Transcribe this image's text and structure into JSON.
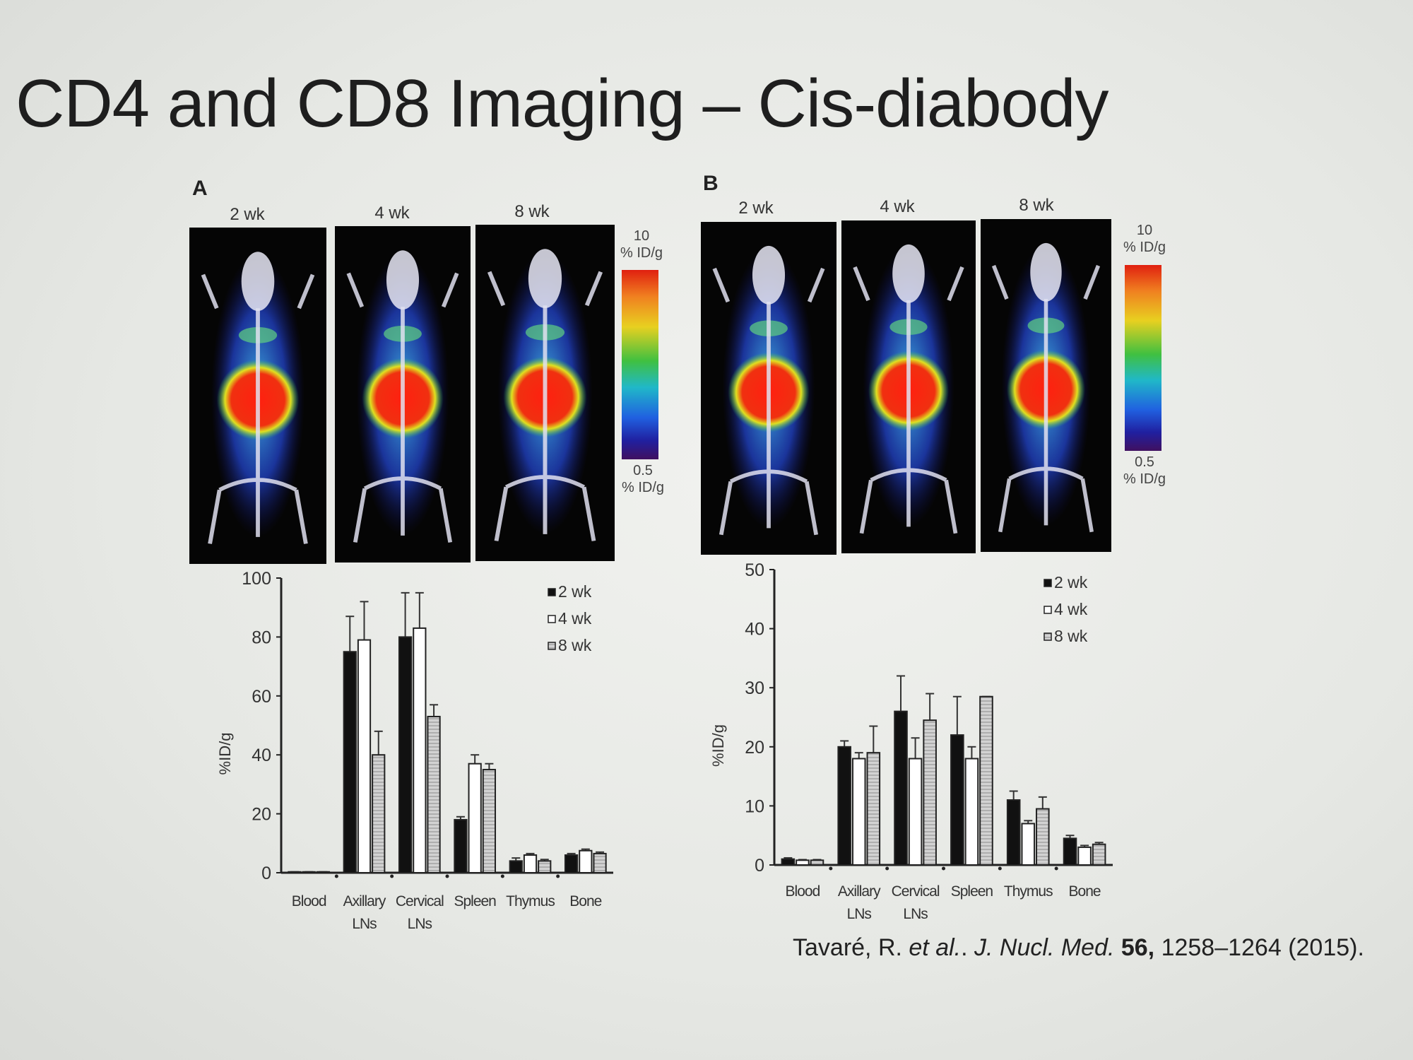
{
  "slide": {
    "title": "CD4 and CD8 Imaging – Cis-diabody",
    "citation": {
      "authors": "Tavaré, R. ",
      "etal": "et al.",
      "sep": ". ",
      "journal": "J. Nucl. Med.",
      "volume": " 56,",
      "pages": " 1258–1264 (2015)."
    }
  },
  "panels": [
    {
      "label": "A",
      "timepoints": [
        "2 wk",
        "4 wk",
        "8 wk"
      ],
      "colorbar": {
        "max_value": "10",
        "max_unit": "% ID/g",
        "min_value": "0.5",
        "min_unit": "% ID/g"
      }
    },
    {
      "label": "B",
      "timepoints": [
        "2 wk",
        "4 wk",
        "8 wk"
      ],
      "colorbar": {
        "max_value": "10",
        "max_unit": "% ID/g",
        "min_value": "0.5",
        "min_unit": "% ID/g"
      }
    }
  ],
  "colors": {
    "2 wk": "#111111",
    "4 wk": "#ffffff",
    "8 wk": "#c9c9c9"
  },
  "chart_data": [
    {
      "type": "bar",
      "panel": "A",
      "categories": [
        "Blood",
        "Axillary\nLNs",
        "Cervical\nLNs",
        "Spleen",
        "Thymus",
        "Bone"
      ],
      "ylabel": "%ID/g",
      "ylim": [
        0,
        100
      ],
      "yticks": [
        0,
        20,
        40,
        60,
        80,
        100
      ],
      "legend": "top-right",
      "series": [
        {
          "name": "2 wk",
          "values": [
            0.3,
            75,
            80,
            18,
            4,
            6
          ],
          "error_top": [
            0.3,
            87,
            95,
            19,
            5,
            6.5
          ]
        },
        {
          "name": "4 wk",
          "values": [
            0.3,
            79,
            83,
            37,
            6,
            7.5
          ],
          "error_top": [
            0.3,
            92,
            95,
            40,
            6.5,
            8
          ]
        },
        {
          "name": "8 wk",
          "values": [
            0.3,
            40,
            53,
            35,
            4,
            6.5
          ],
          "error_top": [
            0.3,
            48,
            57,
            37,
            4.5,
            7
          ]
        }
      ]
    },
    {
      "type": "bar",
      "panel": "B",
      "categories": [
        "Blood",
        "Axillary\nLNs",
        "Cervical\nLNs",
        "Spleen",
        "Thymus",
        "Bone"
      ],
      "ylabel": "%ID/g",
      "ylim": [
        0,
        50
      ],
      "yticks": [
        0,
        10,
        20,
        30,
        40,
        50
      ],
      "legend": "top-right",
      "series": [
        {
          "name": "2 wk",
          "values": [
            1,
            20,
            26,
            22,
            11,
            4.5
          ],
          "error_top": [
            1.2,
            21,
            32,
            28.5,
            12.5,
            5
          ]
        },
        {
          "name": "4 wk",
          "values": [
            0.8,
            18,
            18,
            18,
            7,
            3
          ],
          "error_top": [
            0.9,
            19,
            21.5,
            20,
            7.5,
            3.3
          ]
        },
        {
          "name": "8 wk",
          "values": [
            0.8,
            19,
            24.5,
            28.5,
            9.5,
            3.5
          ],
          "error_top": [
            0.9,
            23.5,
            29,
            28.5,
            11.5,
            3.8
          ]
        }
      ]
    }
  ]
}
